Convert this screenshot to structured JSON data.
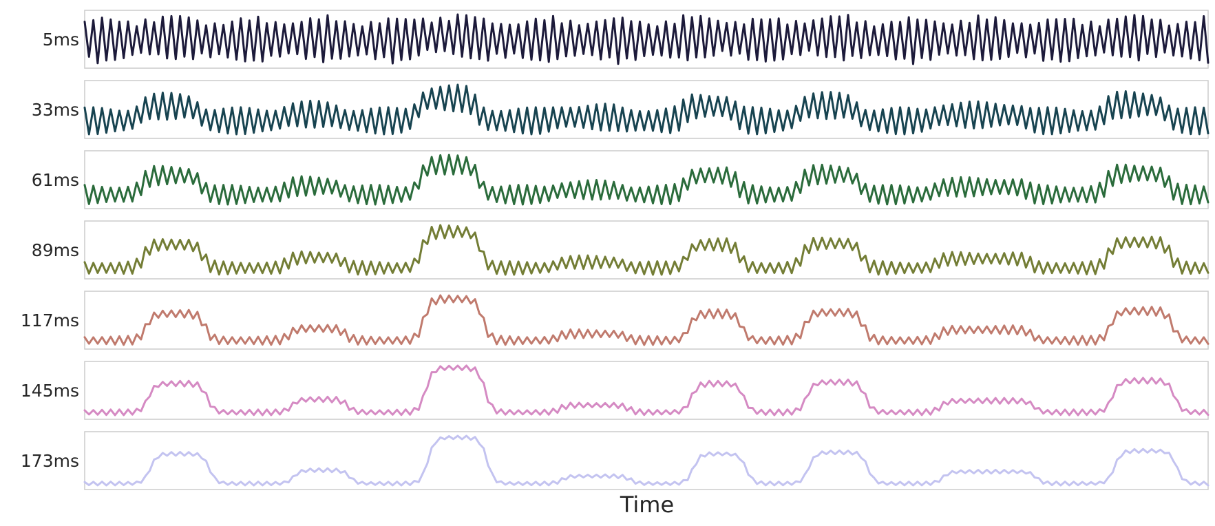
{
  "chart_data": {
    "type": "line",
    "xlabel": "Time",
    "ylabel": "",
    "title": "",
    "grid": false,
    "legend": "none",
    "x_ticks": [],
    "y_ticks": [],
    "n_points": 260,
    "y_range": [
      0,
      1
    ],
    "series": [
      {
        "name": "5ms",
        "color": "#1c1a3a"
      },
      {
        "name": "33ms",
        "color": "#174350"
      },
      {
        "name": "61ms",
        "color": "#2a6b3b"
      },
      {
        "name": "89ms",
        "color": "#737d35"
      },
      {
        "name": "117ms",
        "color": "#c07a6d"
      },
      {
        "name": "145ms",
        "color": "#d58ac3"
      },
      {
        "name": "173ms",
        "color": "#c3c3f0"
      }
    ]
  }
}
